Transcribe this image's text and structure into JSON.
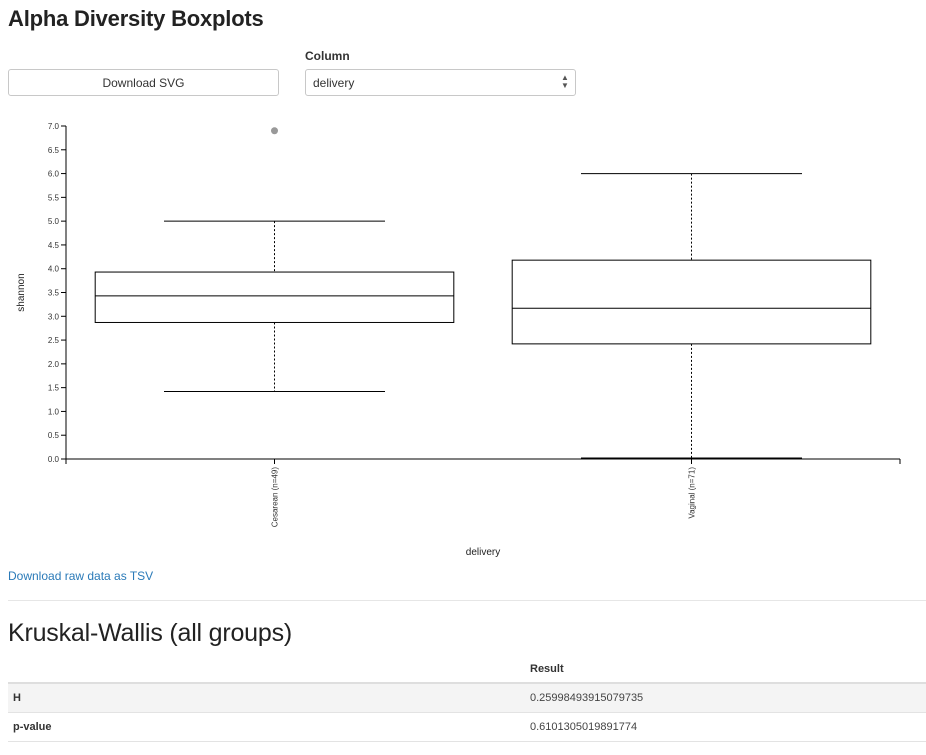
{
  "page": {
    "title": "Alpha Diversity Boxplots",
    "download_svg_label": "Download SVG",
    "column_label": "Column",
    "column_select": {
      "selected": "delivery"
    },
    "download_raw_label": "Download raw data as TSV"
  },
  "chart_data": {
    "type": "boxplot",
    "xlabel": "delivery",
    "ylabel": "shannon",
    "ylim": [
      0,
      7
    ],
    "yticks": [
      "0.0",
      "0.5",
      "1.0",
      "1.5",
      "2.0",
      "2.5",
      "3.0",
      "3.5",
      "4.0",
      "4.5",
      "5.0",
      "5.5",
      "6.0",
      "6.5",
      "7.0"
    ],
    "categories": [
      "Cesarean (n=49)",
      "Vaginal (n=71)"
    ],
    "series": [
      {
        "min": 1.42,
        "q1": 2.87,
        "median": 3.43,
        "q3": 3.93,
        "max": 5.0,
        "outliers": [
          6.9
        ]
      },
      {
        "min": 0.02,
        "q1": 2.42,
        "median": 3.17,
        "q3": 4.18,
        "max": 6.0,
        "outliers": []
      }
    ],
    "colors": {
      "box_stroke": "#000000",
      "outlier": "#999999",
      "axis": "#000000"
    }
  },
  "stats": {
    "title": "Kruskal-Wallis (all groups)",
    "header": [
      "",
      "Result"
    ],
    "rows": [
      {
        "label": "H",
        "value": "0.25998493915079735"
      },
      {
        "label": "p-value",
        "value": "0.6101305019891774"
      }
    ]
  }
}
